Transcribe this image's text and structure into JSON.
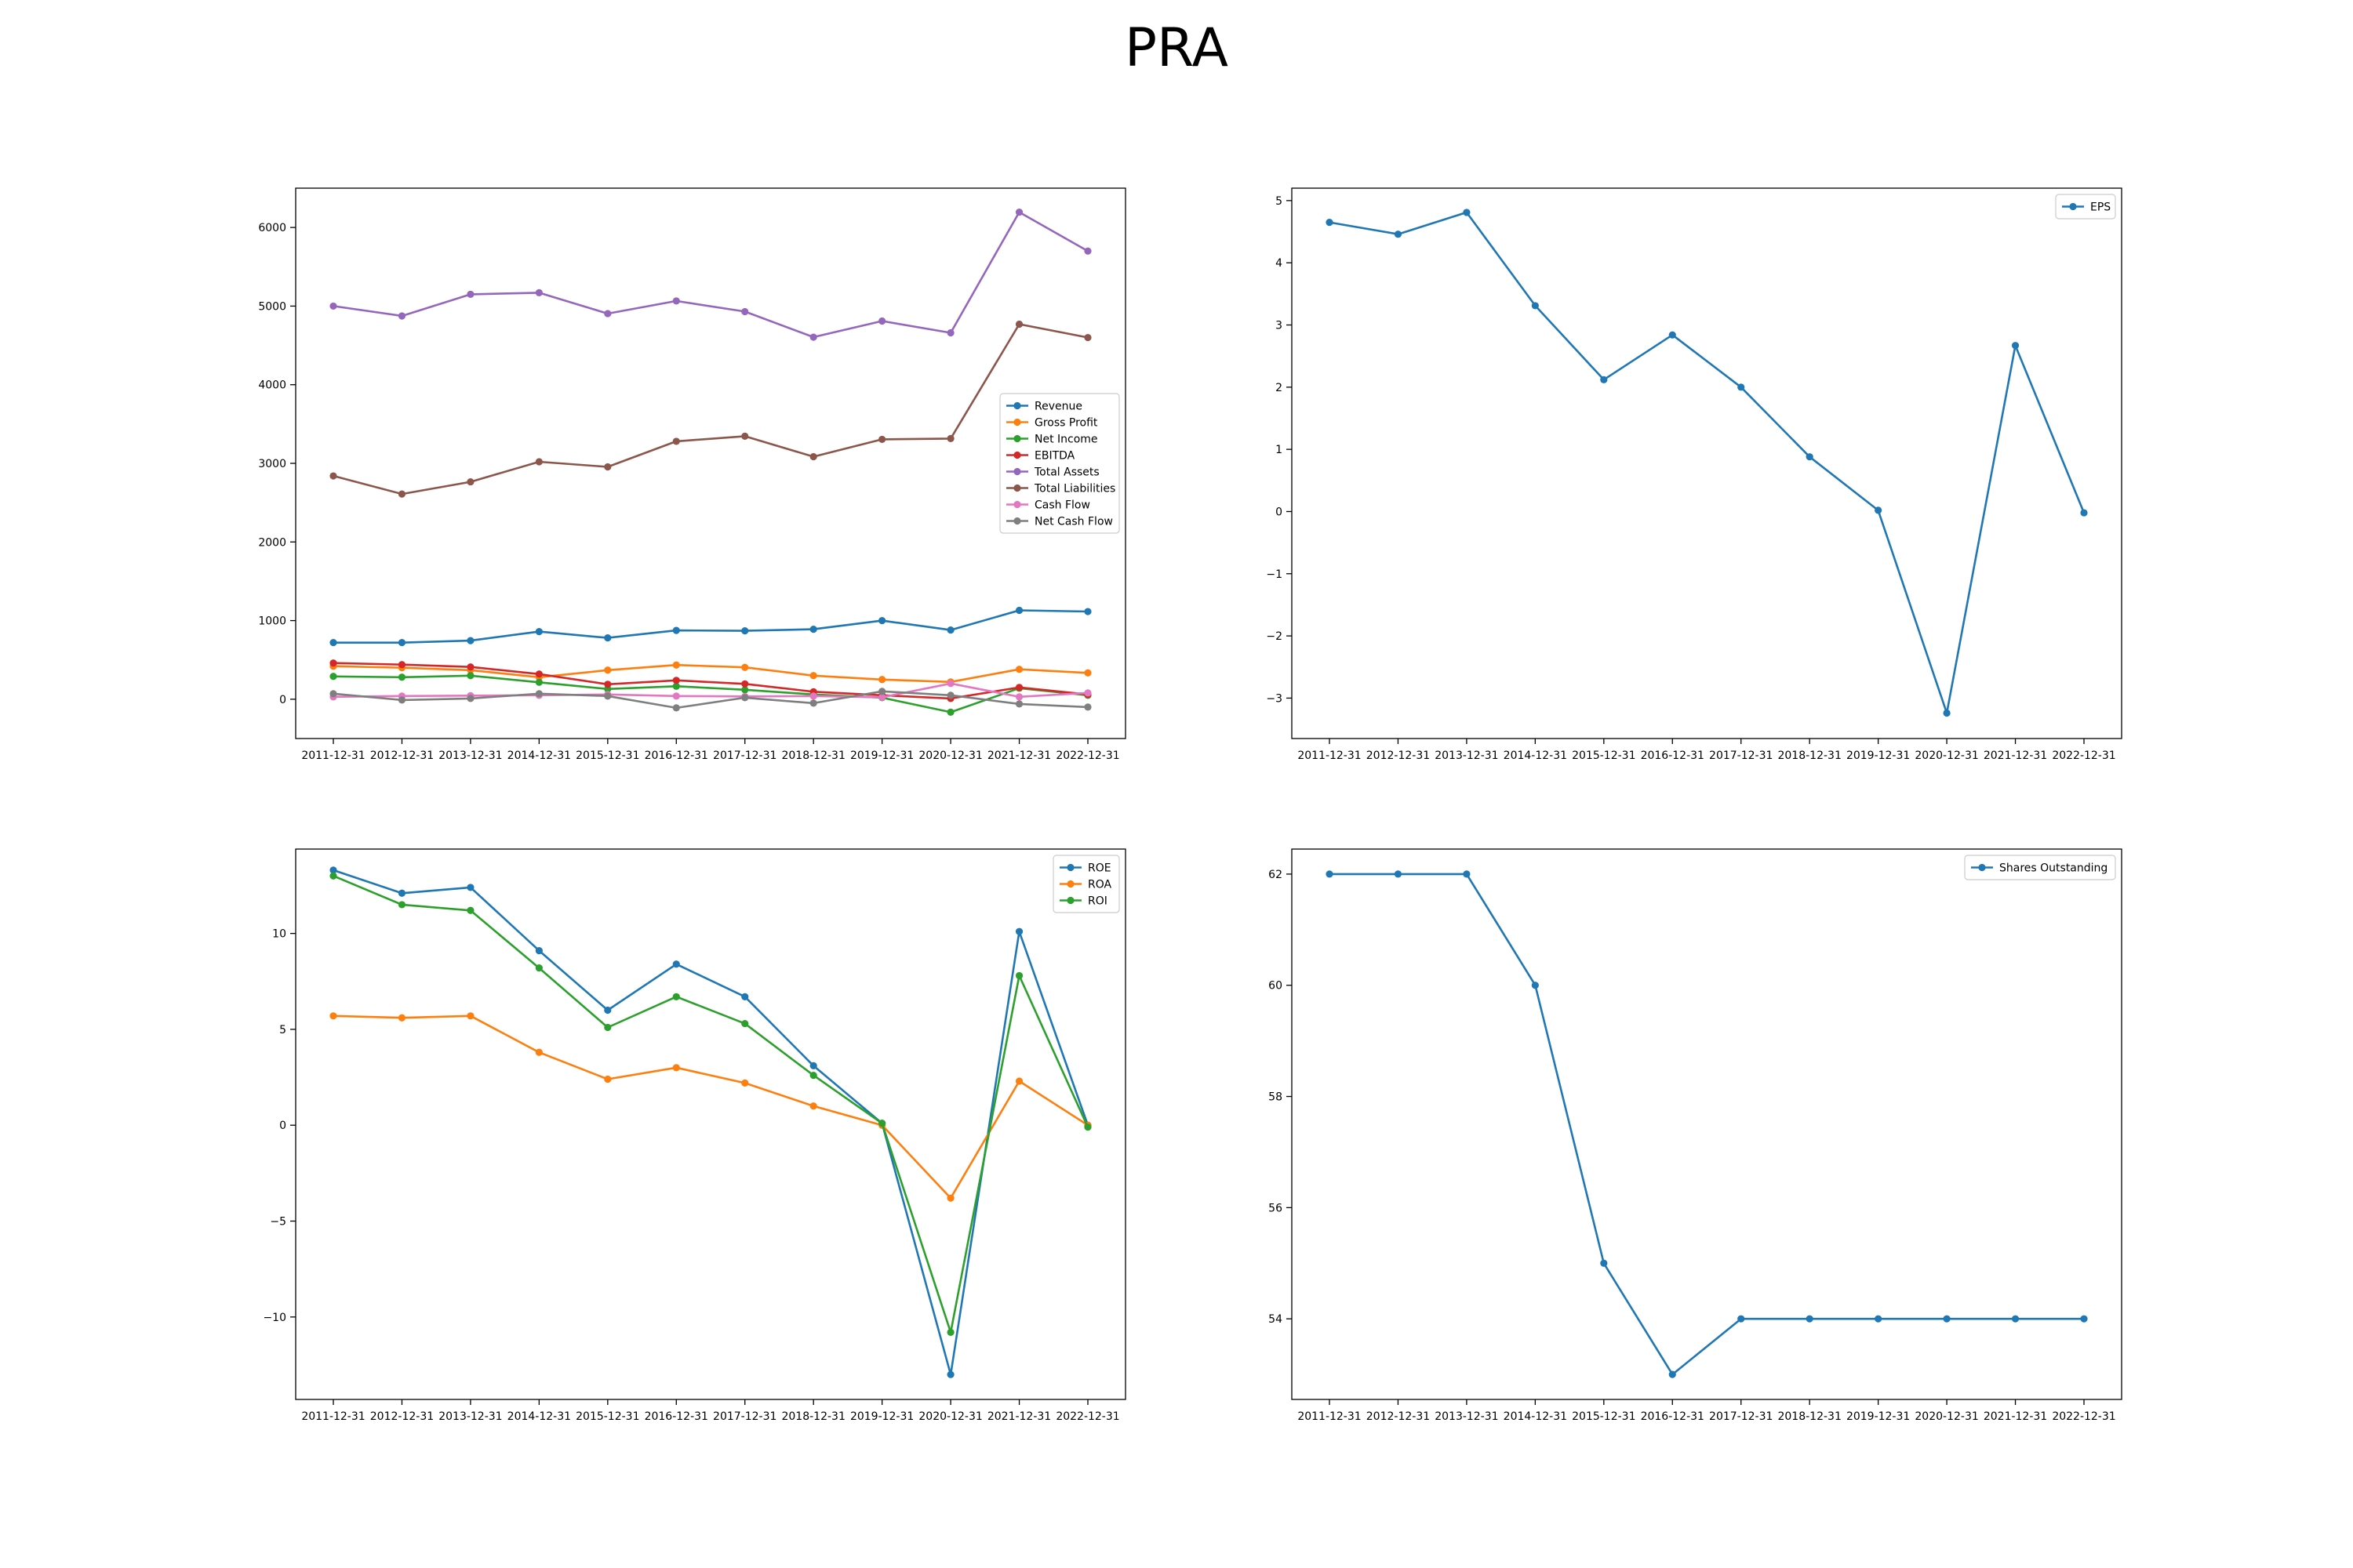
{
  "page": {
    "title": "PRA"
  },
  "chart_data": [
    {
      "type": "line",
      "title": "",
      "xlabel": "",
      "ylabel": "",
      "x": [
        "2011-12-31",
        "2012-12-31",
        "2013-12-31",
        "2014-12-31",
        "2015-12-31",
        "2016-12-31",
        "2017-12-31",
        "2018-12-31",
        "2019-12-31",
        "2020-12-31",
        "2021-12-31",
        "2022-12-31"
      ],
      "ylim": [
        -500,
        6500
      ],
      "yticks": [
        0,
        1000,
        2000,
        3000,
        4000,
        5000,
        6000
      ],
      "yticklabels": [
        "0",
        "1000",
        "2000",
        "3000",
        "4000",
        "5000",
        "6000"
      ],
      "grid": false,
      "legend": "center-right",
      "series": [
        {
          "name": "Revenue",
          "color": "#1f77b4",
          "values": [
            720,
            720,
            745,
            860,
            780,
            875,
            870,
            890,
            1000,
            880,
            1130,
            1115
          ]
        },
        {
          "name": "Gross Profit",
          "color": "#ff7f0e",
          "values": [
            420,
            400,
            370,
            280,
            370,
            435,
            405,
            300,
            250,
            220,
            380,
            335
          ]
        },
        {
          "name": "Net Income",
          "color": "#2ca02c",
          "values": [
            290,
            280,
            300,
            215,
            130,
            165,
            120,
            60,
            20,
            -165,
            140,
            50
          ]
        },
        {
          "name": "EBITDA",
          "color": "#d62728",
          "values": [
            460,
            440,
            410,
            320,
            190,
            240,
            195,
            95,
            50,
            10,
            150,
            60
          ]
        },
        {
          "name": "Total Assets",
          "color": "#9467bd",
          "values": [
            5000,
            4875,
            5150,
            5170,
            4905,
            5065,
            4930,
            4605,
            4810,
            4660,
            6195,
            5700
          ]
        },
        {
          "name": "Total Liabilities",
          "color": "#8c564b",
          "values": [
            2840,
            2610,
            2765,
            3020,
            2955,
            3280,
            3345,
            3085,
            3305,
            3315,
            4770,
            4600
          ]
        },
        {
          "name": "Cash Flow",
          "color": "#e377c2",
          "values": [
            30,
            40,
            45,
            50,
            60,
            40,
            35,
            40,
            25,
            200,
            30,
            80
          ]
        },
        {
          "name": "Net Cash Flow",
          "color": "#7f7f7f",
          "values": [
            70,
            -10,
            10,
            70,
            40,
            -110,
            20,
            -50,
            100,
            50,
            -60,
            -100
          ]
        }
      ]
    },
    {
      "type": "line",
      "title": "",
      "xlabel": "",
      "ylabel": "",
      "x": [
        "2011-12-31",
        "2012-12-31",
        "2013-12-31",
        "2014-12-31",
        "2015-12-31",
        "2016-12-31",
        "2017-12-31",
        "2018-12-31",
        "2019-12-31",
        "2020-12-31",
        "2021-12-31",
        "2022-12-31"
      ],
      "ylim": [
        -3.65,
        5.2
      ],
      "yticks": [
        -3,
        -2,
        -1,
        0,
        1,
        2,
        3,
        4,
        5
      ],
      "yticklabels": [
        "−3",
        "−2",
        "−1",
        "0",
        "1",
        "2",
        "3",
        "4",
        "5"
      ],
      "grid": false,
      "legend": "top-right",
      "series": [
        {
          "name": "EPS",
          "color": "#1f77b4",
          "values": [
            4.65,
            4.46,
            4.81,
            3.31,
            2.12,
            2.84,
            2.0,
            0.88,
            0.02,
            -3.24,
            2.67,
            -0.02
          ]
        }
      ]
    },
    {
      "type": "line",
      "title": "",
      "xlabel": "",
      "ylabel": "",
      "x": [
        "2011-12-31",
        "2012-12-31",
        "2013-12-31",
        "2014-12-31",
        "2015-12-31",
        "2016-12-31",
        "2017-12-31",
        "2018-12-31",
        "2019-12-31",
        "2020-12-31",
        "2021-12-31",
        "2022-12-31"
      ],
      "ylim": [
        -14.3,
        14.4
      ],
      "yticks": [
        -10,
        -5,
        0,
        5,
        10
      ],
      "yticklabels": [
        "−10",
        "−5",
        "0",
        "5",
        "10"
      ],
      "grid": false,
      "legend": "top-right",
      "series": [
        {
          "name": "ROE",
          "color": "#1f77b4",
          "values": [
            13.3,
            12.1,
            12.4,
            9.1,
            6.0,
            8.4,
            6.7,
            3.1,
            0.1,
            -13.0,
            10.1,
            0.0
          ]
        },
        {
          "name": "ROA",
          "color": "#ff7f0e",
          "values": [
            5.7,
            5.6,
            5.7,
            3.8,
            2.4,
            3.0,
            2.2,
            1.0,
            0.0,
            -3.8,
            2.3,
            0.0
          ]
        },
        {
          "name": "ROI",
          "color": "#2ca02c",
          "values": [
            13.0,
            11.5,
            11.2,
            8.2,
            5.1,
            6.7,
            5.3,
            2.6,
            0.1,
            -10.8,
            7.8,
            -0.1
          ]
        }
      ]
    },
    {
      "type": "line",
      "title": "",
      "xlabel": "",
      "ylabel": "",
      "x": [
        "2011-12-31",
        "2012-12-31",
        "2013-12-31",
        "2014-12-31",
        "2015-12-31",
        "2016-12-31",
        "2017-12-31",
        "2018-12-31",
        "2019-12-31",
        "2020-12-31",
        "2021-12-31",
        "2022-12-31"
      ],
      "ylim": [
        52.55,
        62.45
      ],
      "yticks": [
        54,
        56,
        58,
        60,
        62
      ],
      "yticklabels": [
        "54",
        "56",
        "58",
        "60",
        "62"
      ],
      "grid": false,
      "legend": "top-right",
      "series": [
        {
          "name": "Shares Outstanding",
          "color": "#1f77b4",
          "values": [
            62,
            62,
            62,
            60,
            55,
            53,
            54,
            54,
            54,
            54,
            54,
            54
          ]
        }
      ]
    }
  ]
}
